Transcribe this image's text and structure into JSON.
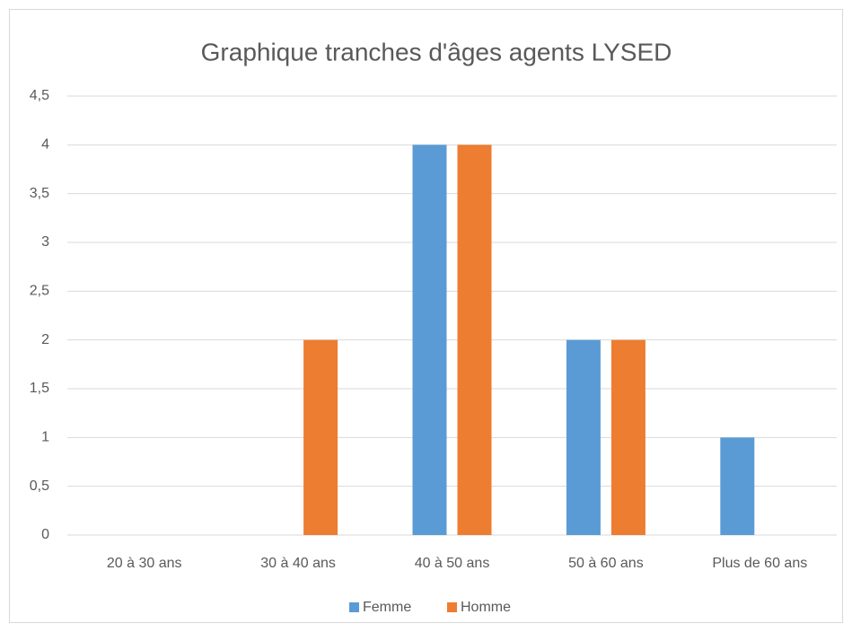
{
  "chart_data": {
    "type": "bar",
    "title": "Graphique tranches d'âges agents LYSED",
    "categories": [
      "20 à 30 ans",
      "30 à 40 ans",
      "40 à 50 ans",
      "50 à 60 ans",
      "Plus de 60 ans"
    ],
    "series": [
      {
        "name": "Femme",
        "color": "#5b9bd5",
        "values": [
          0,
          0,
          4,
          2,
          1
        ]
      },
      {
        "name": "Homme",
        "color": "#ed7d31",
        "values": [
          0,
          2,
          4,
          2,
          0
        ]
      }
    ],
    "ylim": [
      0,
      4.5
    ],
    "yticks": [
      0,
      {
        "value": 0.5,
        "label": "0,5"
      },
      1,
      {
        "value": 1.5,
        "label": "1,5"
      },
      2,
      {
        "value": 2.5,
        "label": "2,5"
      },
      3,
      {
        "value": 3.5,
        "label": "3,5"
      },
      4,
      {
        "value": 4.5,
        "label": "4,5"
      }
    ],
    "grid": true,
    "legend": "bottom"
  }
}
